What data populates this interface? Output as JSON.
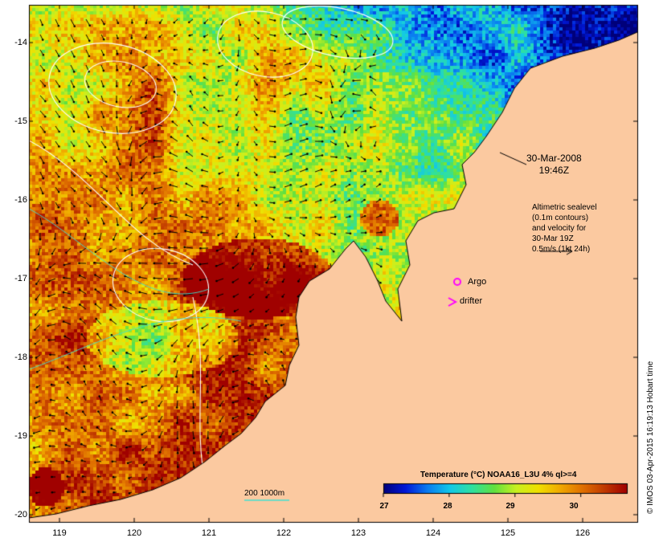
{
  "map": {
    "y_axis_labels": [
      "-14",
      "-15",
      "-16",
      "-17",
      "-18",
      "-19",
      "-20"
    ],
    "x_axis_labels": [
      "119",
      "120",
      "121",
      "122",
      "123",
      "124",
      "125",
      "126"
    ],
    "lon_range": [
      118.6,
      126.7
    ],
    "lat_range": [
      -20.1,
      -13.6
    ],
    "colors": {
      "land": "#fbc9a0",
      "frame": "#000000",
      "contour": "#ffffff",
      "scale_line": "#40e0d0",
      "marker": "#ff00ff"
    }
  },
  "annotations": {
    "date_line1": "30-Mar-2008",
    "date_line2": "19:46Z",
    "altimetric_line1": "Altimetric sealevel",
    "altimetric_line2": "(0.1m contours)",
    "altimetric_line3": "and velocity for",
    "altimetric_line4": "30-Mar 19Z",
    "altimetric_line5": "0.5m/s (1kt 24h)",
    "argo_label": "Argo",
    "drifter_label": "drifter",
    "bathymetry_label": "200  1000m"
  },
  "colorbar": {
    "title": "Temperature (°C) NOAA16_L3U 4% ql>=4",
    "ticks": [
      "27",
      "28",
      "29",
      "30"
    ],
    "tick_values": [
      27,
      28,
      29,
      30
    ],
    "range": [
      27,
      30.7
    ],
    "stops": [
      "#00007a",
      "#0018d8",
      "#0a7cf0",
      "#12c8e8",
      "#2fe0a0",
      "#60e040",
      "#c8f020",
      "#f0e000",
      "#f0a800",
      "#e07000",
      "#c03800",
      "#a00000"
    ]
  },
  "credit": "© IMOS 03-Apr-2015 16:19:13 Hobart time"
}
